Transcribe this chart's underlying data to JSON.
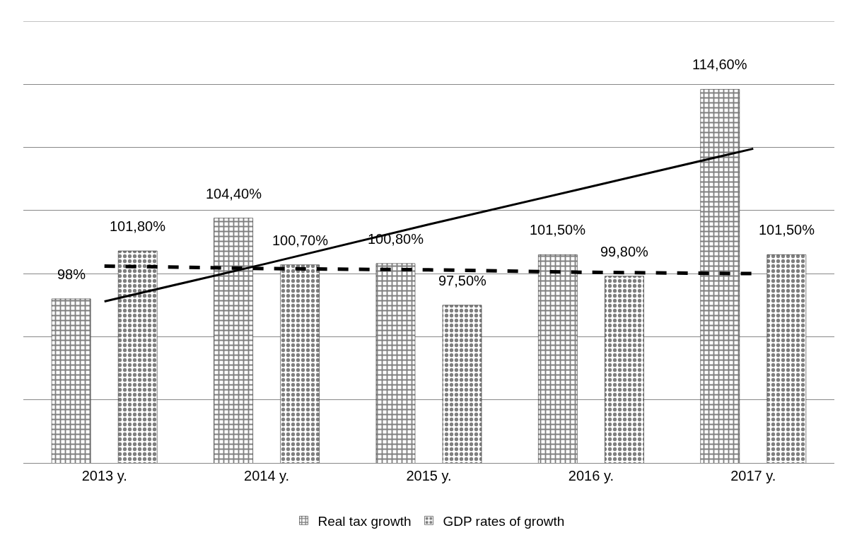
{
  "chart_data": {
    "type": "bar",
    "categories": [
      "2013 y.",
      "2014 y.",
      "2015 y.",
      "2016 y.",
      "2017 y."
    ],
    "series": [
      {
        "name": "Real tax growth",
        "color": "#000000",
        "values": [
          98,
          104.4,
          100.8,
          101.5,
          114.6
        ],
        "value_labels": [
          "98%",
          "104,40%",
          "100,80%",
          "101,50%",
          "114,60%"
        ]
      },
      {
        "name": "GDP rates of growth",
        "color": "#000000",
        "values": [
          101.8,
          100.7,
          97.5,
          99.8,
          101.5
        ],
        "value_labels": [
          "101,80%",
          "100,70%",
          "97,50%",
          "99,80%",
          "101,50%"
        ]
      },
      {
        "type": "line",
        "color": "#000000",
        "line_style": "solid",
        "marker": "none",
        "values": [
          97.8,
          100.8,
          103.9,
          106.9,
          109.9
        ]
      },
      {
        "type": "line",
        "color": "#000000",
        "line_style": "dashed",
        "marker": "none",
        "values": [
          100.6,
          100.4,
          100.3,
          100.1,
          100.0
        ]
      }
    ],
    "ylim": [
      85,
      120
    ],
    "grid": "y",
    "legend": "bottom",
    "tick_labels": "x"
  }
}
